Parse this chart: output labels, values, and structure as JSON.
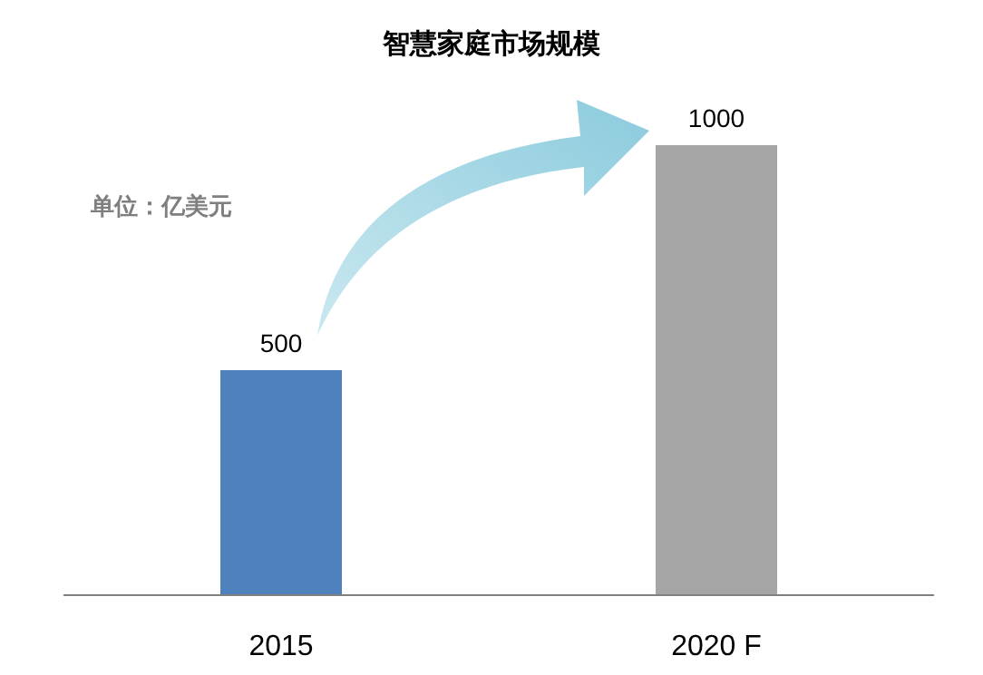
{
  "chart_data": {
    "type": "bar",
    "title": "智慧家庭市场规模",
    "categories": [
      "2015",
      "2020 F"
    ],
    "values": [
      500,
      1000
    ],
    "colors": [
      "#4f81bd",
      "#a5a5a5"
    ],
    "data_labels": true,
    "annotations": [
      "单位：亿美元"
    ]
  }
}
